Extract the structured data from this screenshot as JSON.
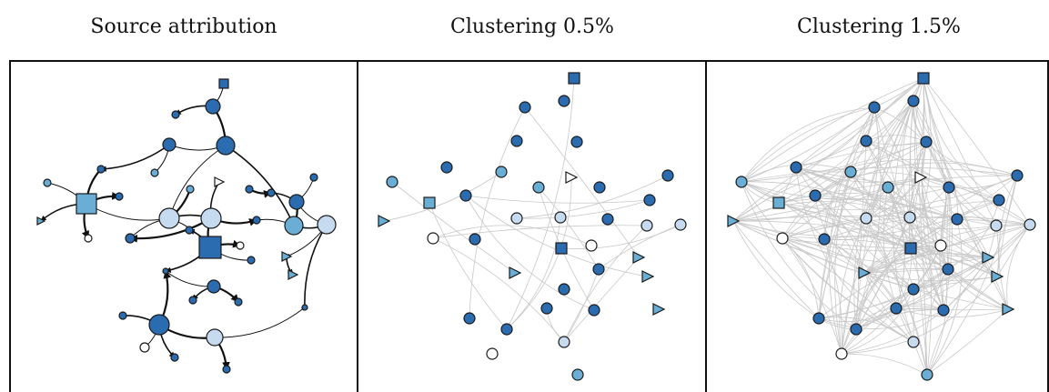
{
  "panels": [
    {
      "title": "Source attribution"
    },
    {
      "title": "Clustering 0.5%"
    },
    {
      "title": "Clustering 1.5%"
    }
  ]
}
